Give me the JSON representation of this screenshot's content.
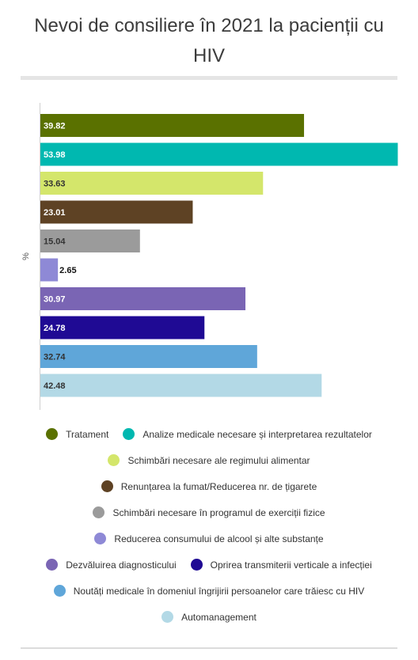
{
  "title": "Nevoi de consiliere în 2021 la pacienții cu HIV",
  "chart_data": {
    "type": "bar",
    "orientation": "horizontal",
    "title": "Nevoi de consiliere în 2021 la pacienții cu HIV",
    "ylabel": "%",
    "xlim": [
      0,
      55
    ],
    "grid": false,
    "legend_position": "bottom",
    "series": [
      {
        "name": "Tratament",
        "value": 39.82,
        "color": "#5a7100",
        "label_color": "#ffffff"
      },
      {
        "name": "Analize medicale necesare și interpretarea rezultatelor",
        "value": 53.98,
        "color": "#00b8b0",
        "label_color": "#ffffff"
      },
      {
        "name": "Schimbări necesare ale regimului alimentar",
        "value": 33.63,
        "color": "#d4e66b",
        "label_color": "#333333"
      },
      {
        "name": "Renunțarea la fumat/Reducerea nr. de țigarete",
        "value": 23.01,
        "color": "#5e4224",
        "label_color": "#ffffff"
      },
      {
        "name": "Schimbări necesare în programul de exerciții fizice",
        "value": 15.04,
        "color": "#9b9b9b",
        "label_color": "#333333"
      },
      {
        "name": "Reducerea consumului de alcool și alte substanțe",
        "value": 2.65,
        "color": "#8e89d6",
        "label_color": "#111111"
      },
      {
        "name": "Dezvăluirea diagnosticului",
        "value": 30.97,
        "color": "#7a65b4",
        "label_color": "#ffffff"
      },
      {
        "name": "Oprirea transmiterii verticale a infecției",
        "value": 24.78,
        "color": "#1f0a94",
        "label_color": "#ffffff"
      },
      {
        "name": "Noutăți medicale în domeniul îngrijirii persoanelor care trăiesc cu HIV",
        "value": 32.74,
        "color": "#5fa6d9",
        "label_color": "#333333"
      },
      {
        "name": "Automanagement",
        "value": 42.48,
        "color": "#b3d9e6",
        "label_color": "#333333"
      }
    ]
  }
}
